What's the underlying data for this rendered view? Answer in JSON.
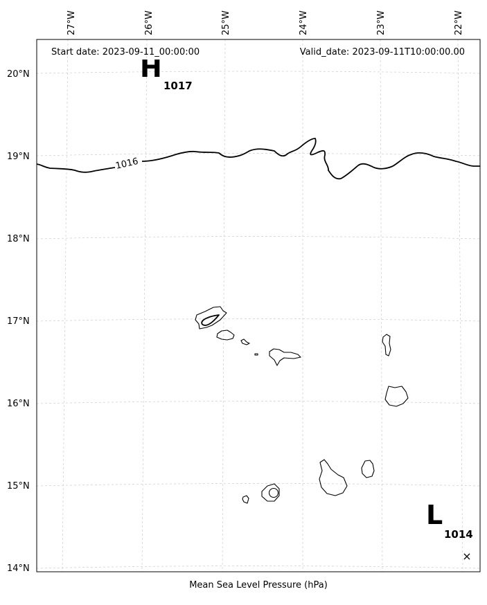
{
  "header": {
    "start_date": "Start date: 2023-09-11_00:00:00",
    "valid_date": "Valid_date: 2023-09-11T10:00:00.00"
  },
  "footer": {
    "caption": "Mean Sea Level Pressure (hPa)"
  },
  "longitude_ticks": [
    "27°W",
    "26°W",
    "25°W",
    "24°W",
    "23°W",
    "22°W"
  ],
  "latitude_ticks": [
    "20°N",
    "19°N",
    "18°N",
    "17°N",
    "16°N",
    "15°N",
    "14°N"
  ],
  "pressure_centers": [
    {
      "type": "high",
      "letter": "H",
      "value": "1017"
    },
    {
      "type": "low",
      "letter": "L",
      "value": "1014"
    }
  ],
  "isobar_labels": [
    "1016"
  ],
  "markers": {
    "low_center_symbol": "×"
  }
}
